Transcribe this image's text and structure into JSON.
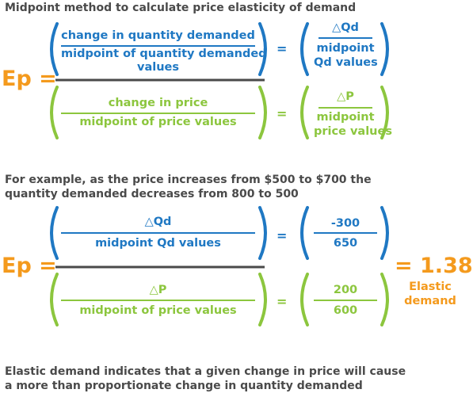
{
  "title": "Midpoint method to calculate price elasticity of demand",
  "colors": {
    "text": "#4a4a4a",
    "blue": "#1f78c3",
    "green": "#8cc63e",
    "orange": "#f49a1d"
  },
  "formula": {
    "ep_label": "Ep =",
    "top_left_line1": "change in quantity demanded",
    "top_left_line2": "midpoint of quantity demanded",
    "top_left_line3": "values",
    "equals": "=",
    "top_right_num": "△Qd",
    "top_right_den1": "midpoint",
    "top_right_den2": "Qd values",
    "bottom_left_num": "change in price",
    "bottom_left_den": "midpoint of price values",
    "bottom_right_num": "△P",
    "bottom_right_den1": "midpoint",
    "bottom_right_den2": "price values"
  },
  "example": {
    "intro_line1": "For example, as the price increases from $500 to $700 the",
    "intro_line2": "quantity demanded decreases from 800 to 500",
    "ep_label": "Ep =",
    "top_left_num": "△Qd",
    "top_left_den": "midpoint Qd values",
    "top_right_num": "-300",
    "top_right_den": "650",
    "bottom_left_num": "△P",
    "bottom_left_den": "midpoint of price values",
    "bottom_right_num": "200",
    "bottom_right_den": "600",
    "result": "= 1.38",
    "result_label1": "Elastic",
    "result_label2": "demand"
  },
  "conclusion": {
    "line1": "Elastic demand indicates that a given change in price will cause",
    "line2": "a more than proportionate change in quantity demanded"
  }
}
